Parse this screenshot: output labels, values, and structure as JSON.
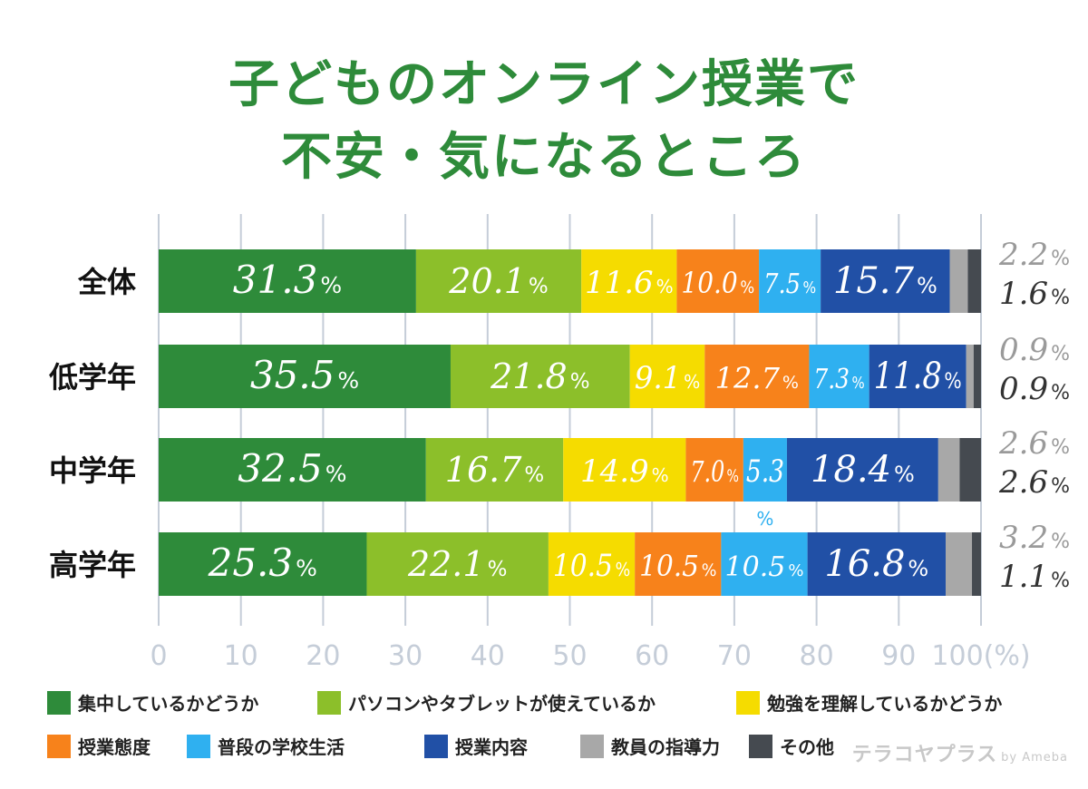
{
  "title_line1": "子どものオンライン授業で",
  "title_line2": "不安・気になるところ",
  "watermark": "テラコヤプラス",
  "watermark_by": "by Ameba",
  "colors": {
    "title": "#2e8b3a",
    "grid": "#c5cdd8",
    "axis_text": "#c5cdd8",
    "outside_light": "#9a9a9a",
    "outside_dark": "#333333",
    "outside_pct": "#f08a1a"
  },
  "chart_data": {
    "type": "bar",
    "orientation": "horizontal",
    "stacked": true,
    "title": "子どものオンライン授業で不安・気になるところ",
    "categories": [
      "全体",
      "低学年",
      "中学年",
      "高学年"
    ],
    "xlim": [
      0,
      100
    ],
    "xticks": [
      "0",
      "10",
      "20",
      "30",
      "40",
      "50",
      "60",
      "70",
      "80",
      "90",
      "100(%)"
    ],
    "grid": true,
    "unit": "%",
    "series": [
      {
        "name": "集中しているかどうか",
        "color": "#2e8b3a",
        "values": [
          31.3,
          35.5,
          32.5,
          25.3
        ]
      },
      {
        "name": "パソコンやタブレットが使えているか",
        "color": "#8cbf2a",
        "values": [
          20.1,
          21.8,
          16.7,
          22.1
        ]
      },
      {
        "name": "勉強を理解しているかどうか",
        "color": "#f5dc00",
        "values": [
          11.6,
          9.1,
          14.9,
          10.5
        ]
      },
      {
        "name": "授業態度",
        "color": "#f7821b",
        "values": [
          10.0,
          12.7,
          7.0,
          10.5
        ]
      },
      {
        "name": "普段の学校生活",
        "color": "#2fb0f0",
        "values": [
          7.5,
          7.3,
          5.3,
          10.5
        ]
      },
      {
        "name": "授業内容",
        "color": "#2150a6",
        "values": [
          15.7,
          11.8,
          18.4,
          16.8
        ]
      },
      {
        "name": "教員の指導力",
        "color": "#a8a8a8",
        "values": [
          2.2,
          0.9,
          2.6,
          3.2
        ]
      },
      {
        "name": "その他",
        "color": "#454a50",
        "values": [
          1.6,
          0.9,
          2.6,
          1.1
        ]
      }
    ]
  }
}
